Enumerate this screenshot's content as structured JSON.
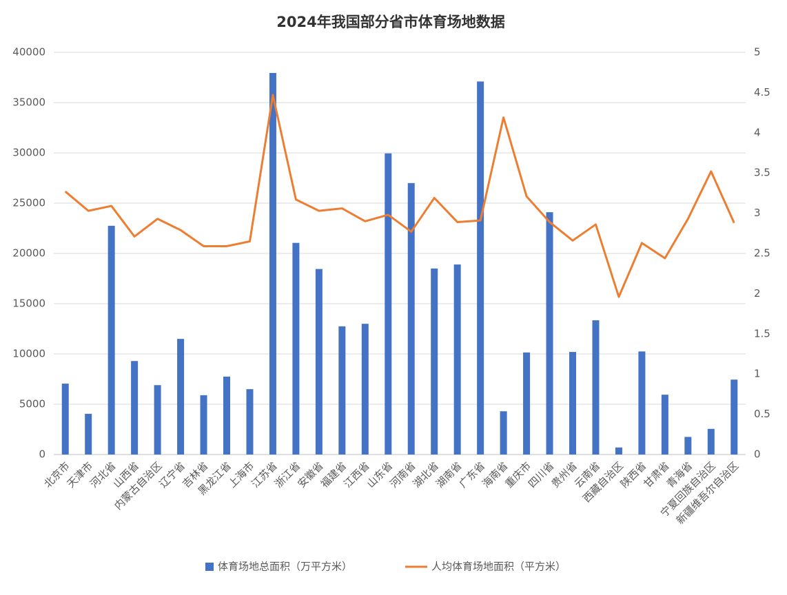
{
  "chart_data": {
    "type": "bar_line",
    "title": "2024年我国部分省市体育场地数据",
    "categories": [
      "北京市",
      "天津市",
      "河北省",
      "山西省",
      "内蒙古自治区",
      "辽宁省",
      "吉林省",
      "黑龙江省",
      "上海市",
      "江苏省",
      "浙江省",
      "安徽省",
      "福建省",
      "江西省",
      "山东省",
      "河南省",
      "湖北省",
      "湖南省",
      "广东省",
      "海南省",
      "重庆市",
      "四川省",
      "贵州省",
      "云南省",
      "西藏自治区",
      "陕西省",
      "甘肃省",
      "青海省",
      "宁夏回族自治区",
      "新疆维吾尔自治区"
    ],
    "series": [
      {
        "name": "体育场地总面积（万平方米）",
        "type": "bar",
        "color": "#4472c4",
        "values": [
          7050,
          4050,
          22750,
          9300,
          6900,
          11500,
          5900,
          7750,
          6500,
          37950,
          21050,
          18450,
          12750,
          13000,
          29950,
          27000,
          18500,
          18900,
          37100,
          4300,
          10150,
          24100,
          10200,
          13350,
          700,
          10250,
          5950,
          1750,
          2550,
          7450
        ]
      },
      {
        "name": "人均体育场地面积（平方米）",
        "type": "line",
        "axis": "y2",
        "color": "#ed7d31",
        "values": [
          3.27,
          3.03,
          3.09,
          2.71,
          2.93,
          2.79,
          2.59,
          2.59,
          2.65,
          4.47,
          3.17,
          3.03,
          3.06,
          2.9,
          2.98,
          2.77,
          3.19,
          2.89,
          2.91,
          4.19,
          3.21,
          2.89,
          2.66,
          2.86,
          1.96,
          2.63,
          2.44,
          2.93,
          3.52,
          2.88
        ]
      }
    ],
    "ylim": [
      0,
      40000
    ],
    "yticks": [
      0,
      5000,
      10000,
      15000,
      20000,
      25000,
      30000,
      35000,
      40000
    ],
    "y2lim": [
      0,
      5
    ],
    "y2ticks": [
      0,
      0.5,
      1,
      1.5,
      2,
      2.5,
      3,
      3.5,
      4,
      4.5,
      5
    ],
    "grid": true,
    "legend": "bottom"
  }
}
